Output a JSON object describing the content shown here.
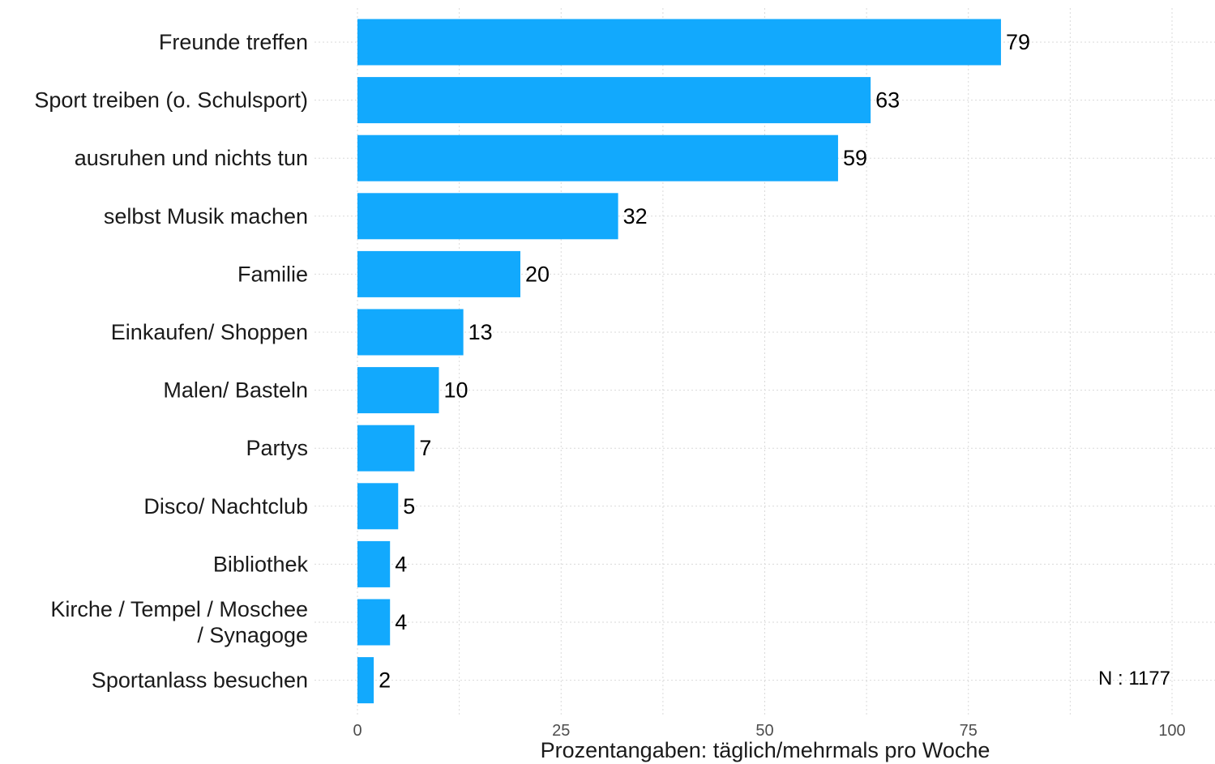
{
  "chart_data": {
    "type": "bar",
    "orientation": "horizontal",
    "categories": [
      "Freunde treffen",
      "Sport treiben (o. Schulsport)",
      "ausruhen und nichts tun",
      "selbst Musik machen",
      "Familie",
      "Einkaufen/ Shoppen",
      "Malen/ Basteln",
      "Partys",
      "Disco/ Nachtclub",
      "Bibliothek",
      "Kirche / Tempel / Moschee / Synagoge",
      "Sportanlass besuchen"
    ],
    "category_lines": [
      [
        "Freunde treffen"
      ],
      [
        "Sport treiben (o. Schulsport)"
      ],
      [
        "ausruhen und nichts tun"
      ],
      [
        "selbst Musik machen"
      ],
      [
        "Familie"
      ],
      [
        "Einkaufen/ Shoppen"
      ],
      [
        "Malen/ Basteln"
      ],
      [
        "Partys"
      ],
      [
        "Disco/ Nachtclub"
      ],
      [
        "Bibliothek"
      ],
      [
        "Kirche / Tempel / Moschee",
        "/ Synagoge"
      ],
      [
        "Sportanlass besuchen"
      ]
    ],
    "values": [
      79,
      63,
      59,
      32,
      20,
      13,
      10,
      7,
      5,
      4,
      4,
      2
    ],
    "data_labels": [
      "79",
      "63",
      "59",
      "32",
      "20",
      "13",
      "10",
      "7",
      "5",
      "4",
      "4",
      "2"
    ],
    "xlabel": "Prozentangaben: täglich/mehrmals pro Woche",
    "ylabel": "",
    "xlim": [
      0,
      100
    ],
    "x_ticks": [
      0,
      25,
      50,
      75,
      100
    ],
    "x_tick_labels": [
      "0",
      "25",
      "50",
      "75",
      "100"
    ],
    "annotation": "N : 1177",
    "bar_color": "#12A9FD",
    "grid": true
  }
}
